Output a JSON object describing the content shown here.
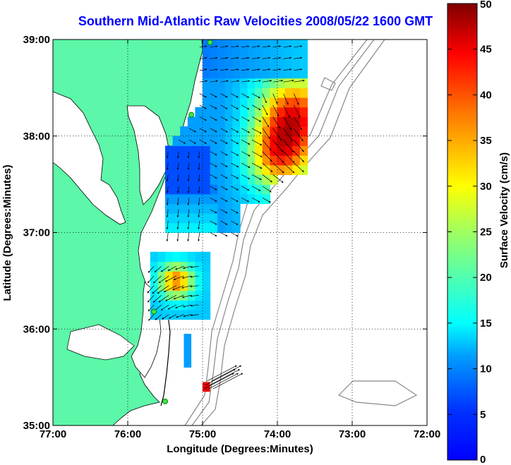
{
  "chart_data": {
    "type": "heatmap",
    "title": "Southern Mid-Atlantic Raw Velocities 2008/05/22 1600 GMT",
    "xlabel": "Longitude (Degrees:Minutes)",
    "ylabel": "Latitude (Degrees:Minutes)",
    "xlim": [
      -77,
      -72
    ],
    "ylim": [
      35,
      39
    ],
    "x_ticks": [
      {
        "value": -77,
        "label": "77:00"
      },
      {
        "value": -76,
        "label": "76:00"
      },
      {
        "value": -75,
        "label": "75:00"
      },
      {
        "value": -74,
        "label": "74:00"
      },
      {
        "value": -73,
        "label": "73:00"
      },
      {
        "value": -72,
        "label": "72:00"
      }
    ],
    "y_ticks": [
      {
        "value": 35,
        "label": "35:00"
      },
      {
        "value": 36,
        "label": "36:00"
      },
      {
        "value": 37,
        "label": "37:00"
      },
      {
        "value": 38,
        "label": "38:00"
      },
      {
        "value": 39,
        "label": "39:00"
      }
    ],
    "grid": true,
    "colorbar": {
      "label": "Surface Velocity (cm/s)",
      "min": 0,
      "max": 50,
      "ticks": [
        0,
        5,
        10,
        15,
        20,
        25,
        30,
        35,
        40,
        45,
        50
      ],
      "colormap": "jet"
    },
    "land_color": "#5cf7a8",
    "title_color": "#0000ff",
    "velocity_regions": [
      {
        "name": "northern-field",
        "lon": [
          -75.6,
          -73.7
        ],
        "lat": [
          36.95,
          38.95
        ],
        "speed_range": [
          8,
          42
        ]
      },
      {
        "name": "southern-field",
        "lon": [
          -75.7,
          -75.0
        ],
        "lat": [
          36.1,
          36.75
        ],
        "speed_range": [
          14,
          38
        ]
      },
      {
        "name": "hatteras-cell",
        "lon": [
          -75.0,
          -74.9
        ],
        "lat": [
          35.35,
          35.45
        ],
        "speed": 45
      }
    ],
    "station_markers": [
      {
        "lon": -74.9,
        "lat": 38.97
      },
      {
        "lon": -75.15,
        "lat": 38.22
      },
      {
        "lon": -75.65,
        "lat": 36.18
      },
      {
        "lon": -75.5,
        "lat": 35.25
      }
    ]
  }
}
